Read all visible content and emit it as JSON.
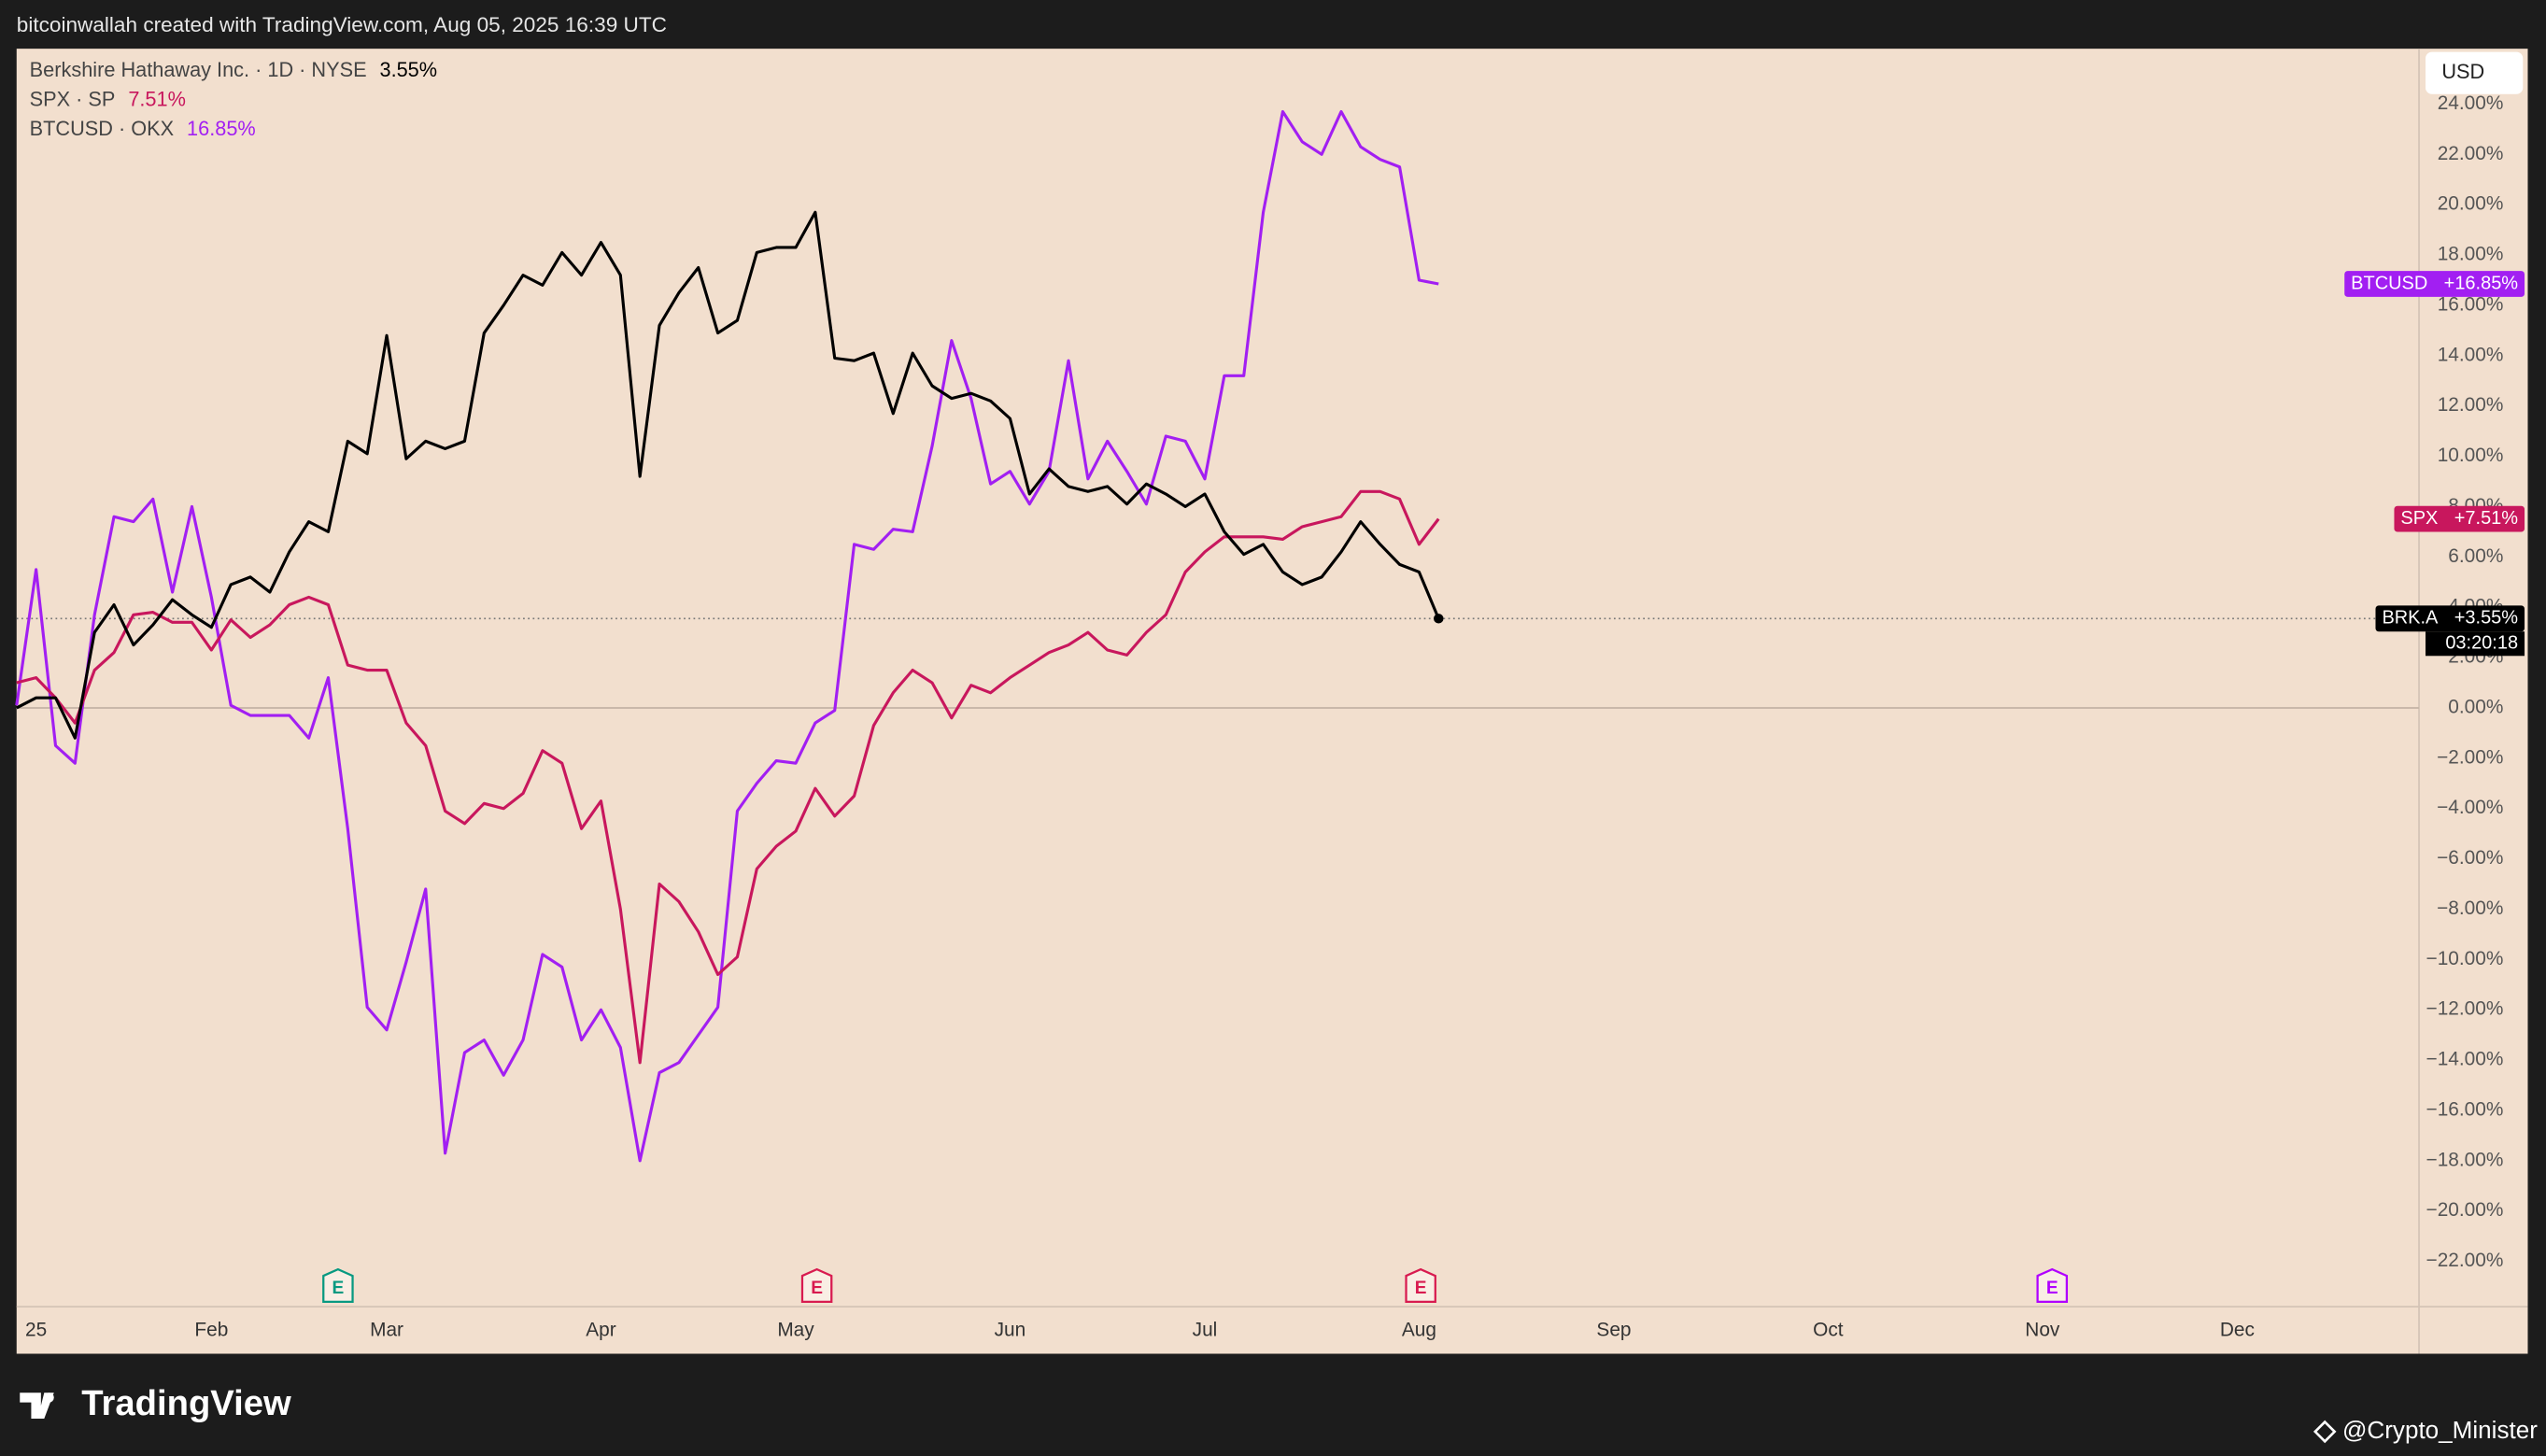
{
  "header": "bitcoinwallah created with TradingView.com, Aug 05, 2025 16:39 UTC",
  "chart_data": {
    "type": "line",
    "currency": "USD",
    "countdown": "03:20:18",
    "grid": false,
    "categories": [
      null,
      "25",
      null,
      null,
      null,
      null,
      null,
      null,
      null,
      null,
      "Feb",
      null,
      null,
      null,
      null,
      null,
      null,
      null,
      null,
      "Mar",
      null,
      null,
      null,
      null,
      null,
      null,
      null,
      null,
      null,
      null,
      "Apr",
      null,
      null,
      null,
      null,
      null,
      null,
      null,
      null,
      null,
      "May",
      null,
      null,
      null,
      null,
      null,
      null,
      null,
      null,
      null,
      null,
      "Jun",
      null,
      null,
      null,
      null,
      null,
      null,
      null,
      null,
      null,
      "Jul",
      null,
      null,
      null,
      null,
      null,
      null,
      null,
      null,
      null,
      null,
      "Aug",
      null,
      null,
      null,
      null,
      null,
      null,
      null,
      null,
      null,
      "Sep",
      null,
      null,
      null,
      null,
      null,
      null,
      null,
      null,
      null,
      null,
      "Oct",
      null,
      null,
      null,
      null,
      null,
      null,
      null,
      null,
      null,
      null,
      "Nov",
      null,
      null,
      null,
      null,
      null,
      null,
      null,
      null,
      null,
      "Dec",
      null,
      null,
      null,
      null,
      null,
      null,
      null,
      null,
      null
    ],
    "ylim": [
      -23.8,
      26.2
    ],
    "yticks": [
      {
        "value": -22,
        "label": "−22.00%"
      },
      {
        "value": -20,
        "label": "−20.00%"
      },
      {
        "value": -18,
        "label": "−18.00%"
      },
      {
        "value": -16,
        "label": "−16.00%"
      },
      {
        "value": -14,
        "label": "−14.00%"
      },
      {
        "value": -12,
        "label": "−12.00%"
      },
      {
        "value": -10,
        "label": "−10.00%"
      },
      {
        "value": -8,
        "label": "−8.00%"
      },
      {
        "value": -6,
        "label": "−6.00%"
      },
      {
        "value": -4,
        "label": "−4.00%"
      },
      {
        "value": -2,
        "label": "−2.00%"
      },
      {
        "value": 0,
        "label": "0.00%"
      },
      {
        "value": 2,
        "label": "2.00%"
      },
      {
        "value": 4,
        "label": "4.00%"
      },
      {
        "value": 6,
        "label": "6.00%"
      },
      {
        "value": 8,
        "label": "8.00%"
      },
      {
        "value": 10,
        "label": "10.00%"
      },
      {
        "value": 12,
        "label": "12.00%"
      },
      {
        "value": 14,
        "label": "14.00%"
      },
      {
        "value": 16,
        "label": "16.00%"
      },
      {
        "value": 18,
        "label": "18.00%"
      },
      {
        "value": 20,
        "label": "20.00%"
      },
      {
        "value": 22,
        "label": "22.00%"
      },
      {
        "value": 24,
        "label": "24.00%"
      }
    ],
    "series": [
      {
        "name": "Berkshire Hathaway Inc. · 1D · NYSE",
        "color": "#000000",
        "last_label": "3.55%",
        "tag": "BRK.A",
        "tag_label": "+3.55%",
        "values": [
          0.0,
          0.4,
          0.4,
          -1.2,
          3.0,
          4.1,
          2.5,
          3.3,
          4.3,
          3.7,
          3.2,
          4.9,
          5.2,
          4.6,
          6.2,
          7.4,
          7.0,
          10.6,
          10.1,
          14.8,
          9.9,
          10.6,
          10.3,
          10.6,
          14.9,
          16.0,
          17.2,
          16.8,
          18.1,
          17.2,
          18.5,
          17.2,
          9.2,
          15.2,
          16.5,
          17.5,
          14.9,
          15.4,
          18.1,
          18.3,
          18.3,
          19.7,
          13.9,
          13.8,
          14.1,
          11.7,
          14.1,
          12.8,
          12.3,
          12.5,
          12.2,
          11.5,
          8.5,
          9.5,
          8.8,
          8.6,
          8.8,
          8.1,
          8.9,
          8.5,
          8.0,
          8.5,
          7.0,
          6.1,
          6.5,
          5.4,
          4.9,
          5.2,
          6.2,
          7.4,
          6.5,
          5.7,
          5.4,
          3.55,
          null,
          null,
          null,
          null,
          null,
          null,
          null,
          null,
          null,
          null,
          null,
          null,
          null,
          null,
          null,
          null,
          null,
          null,
          null,
          null,
          null,
          null,
          null,
          null,
          null,
          null,
          null,
          null,
          null,
          null,
          null,
          null,
          null,
          null,
          null,
          null,
          null,
          null,
          null,
          null,
          null,
          null,
          null,
          null,
          null,
          null,
          null,
          null,
          null,
          null
        ]
      },
      {
        "name": "SPX · SP",
        "color": "#c8175d",
        "last_label": "7.51%",
        "tag": "SPX",
        "tag_label": "+7.51%",
        "values": [
          1.0,
          1.2,
          0.4,
          -0.6,
          1.5,
          2.2,
          3.7,
          3.8,
          3.4,
          3.4,
          2.3,
          3.5,
          2.8,
          3.3,
          4.1,
          4.4,
          4.1,
          1.7,
          1.5,
          1.5,
          -0.6,
          -1.5,
          -4.1,
          -4.6,
          -3.8,
          -4.0,
          -3.4,
          -1.7,
          -2.2,
          -4.8,
          -3.7,
          -8.0,
          -14.1,
          -7.0,
          -7.7,
          -8.9,
          -10.6,
          -9.9,
          -6.4,
          -5.5,
          -4.9,
          -3.2,
          -4.3,
          -3.5,
          -0.7,
          0.6,
          1.5,
          1.0,
          -0.4,
          0.9,
          0.6,
          1.2,
          1.7,
          2.2,
          2.5,
          3.0,
          2.3,
          2.1,
          3.0,
          3.7,
          5.4,
          6.2,
          6.8,
          6.8,
          6.8,
          6.7,
          7.2,
          7.4,
          7.6,
          8.6,
          8.6,
          8.3,
          6.5,
          7.51,
          null,
          null,
          null,
          null,
          null,
          null,
          null,
          null,
          null,
          null,
          null,
          null,
          null,
          null,
          null,
          null,
          null,
          null,
          null,
          null,
          null,
          null,
          null,
          null,
          null,
          null,
          null,
          null,
          null,
          null,
          null,
          null,
          null,
          null,
          null,
          null,
          null,
          null,
          null,
          null,
          null,
          null,
          null,
          null,
          null,
          null,
          null,
          null,
          null,
          null
        ]
      },
      {
        "name": "BTCUSD · OKX",
        "color": "#a21ff2",
        "last_label": "16.85%",
        "tag": "BTCUSD",
        "tag_label": "+16.85%",
        "values": [
          0.1,
          5.5,
          -1.5,
          -2.2,
          3.7,
          7.6,
          7.4,
          8.3,
          4.6,
          8.0,
          4.4,
          0.1,
          -0.3,
          -0.3,
          -0.3,
          -1.2,
          1.2,
          -4.8,
          -11.9,
          -12.8,
          -10.1,
          -7.2,
          -17.7,
          -13.7,
          -13.2,
          -14.6,
          -13.2,
          -9.8,
          -10.3,
          -13.2,
          -12.0,
          -13.5,
          -18.0,
          -14.5,
          -14.1,
          -13.0,
          -11.9,
          -4.1,
          -3.0,
          -2.1,
          -2.2,
          -0.6,
          -0.1,
          6.5,
          6.3,
          7.1,
          7.0,
          10.4,
          14.6,
          12.3,
          8.9,
          9.4,
          8.1,
          9.4,
          13.8,
          9.1,
          10.6,
          9.4,
          8.1,
          10.8,
          10.6,
          9.1,
          13.2,
          13.2,
          19.7,
          23.7,
          22.5,
          22.0,
          23.7,
          22.3,
          21.8,
          21.5,
          17.0,
          16.85,
          null,
          null,
          null,
          null,
          null,
          null,
          null,
          null,
          null,
          null,
          null,
          null,
          null,
          null,
          null,
          null,
          null,
          null,
          null,
          null,
          null,
          null,
          null,
          null,
          null,
          null,
          null,
          null,
          null,
          null,
          null,
          null,
          null,
          null,
          null,
          null,
          null,
          null,
          null,
          null,
          null,
          null,
          null,
          null,
          null,
          null,
          null,
          null,
          null,
          null
        ]
      }
    ],
    "earnings_markers": [
      {
        "label": "E",
        "color": "#089981"
      },
      {
        "label": "E",
        "color": "#d81b50"
      },
      {
        "label": "E",
        "color": "#d81b50"
      },
      {
        "label": "E",
        "color": "#b000ff"
      }
    ]
  },
  "footer": {
    "brand": "TradingView",
    "watermark": "@Crypto_Minister"
  }
}
